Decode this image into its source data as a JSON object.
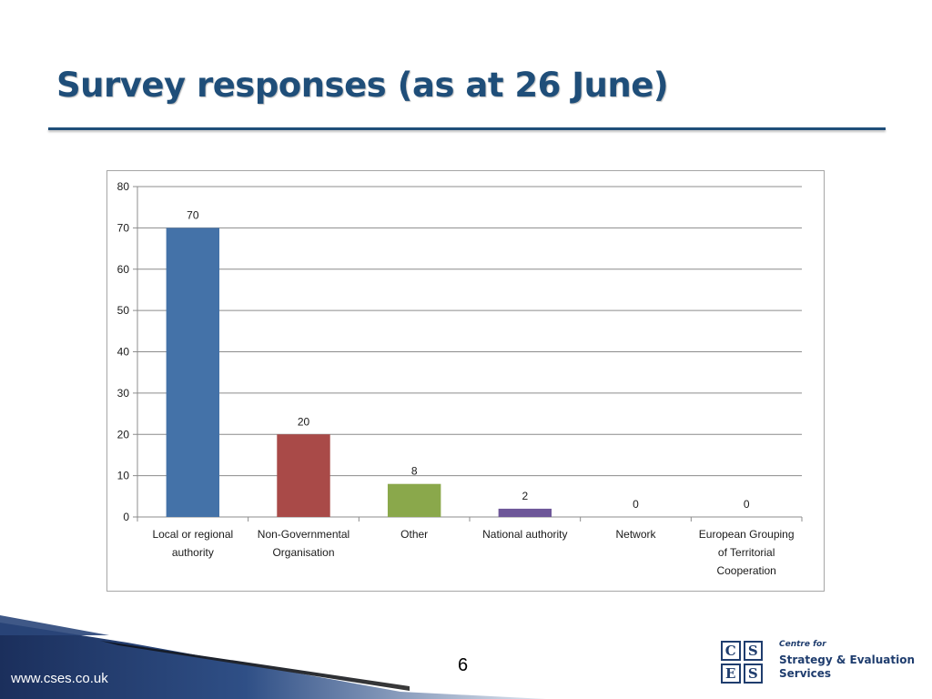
{
  "slide": {
    "title": "Survey responses (as at 26 June)",
    "page_number": "6",
    "website": "www.cses.co.uk"
  },
  "logo": {
    "letters": [
      "C",
      "S",
      "E",
      "S"
    ],
    "small_text": "Centre for",
    "line1": "Strategy & Evaluation",
    "line2": "Services"
  },
  "colors": {
    "title": "#1f4e79",
    "bars": [
      "#4472a8",
      "#a94a48",
      "#8aa84b",
      "#6e5799",
      "#4bacc6",
      "#f79646"
    ]
  },
  "chart_data": {
    "type": "bar",
    "categories": [
      [
        "Local or regional",
        "authority"
      ],
      [
        "Non-Governmental",
        "Organisation"
      ],
      [
        "Other"
      ],
      [
        "National authority"
      ],
      [
        "Network"
      ],
      [
        "European Grouping",
        "of Territorial",
        "Cooperation"
      ]
    ],
    "values": [
      70,
      20,
      8,
      2,
      0,
      0
    ],
    "data_labels": [
      "70",
      "20",
      "8",
      "2",
      "0",
      "0"
    ],
    "ylim": [
      0,
      80
    ],
    "yticks": [
      0,
      10,
      20,
      30,
      40,
      50,
      60,
      70,
      80
    ],
    "grid": true,
    "legend": "none",
    "title": "",
    "xlabel": "",
    "ylabel": ""
  }
}
